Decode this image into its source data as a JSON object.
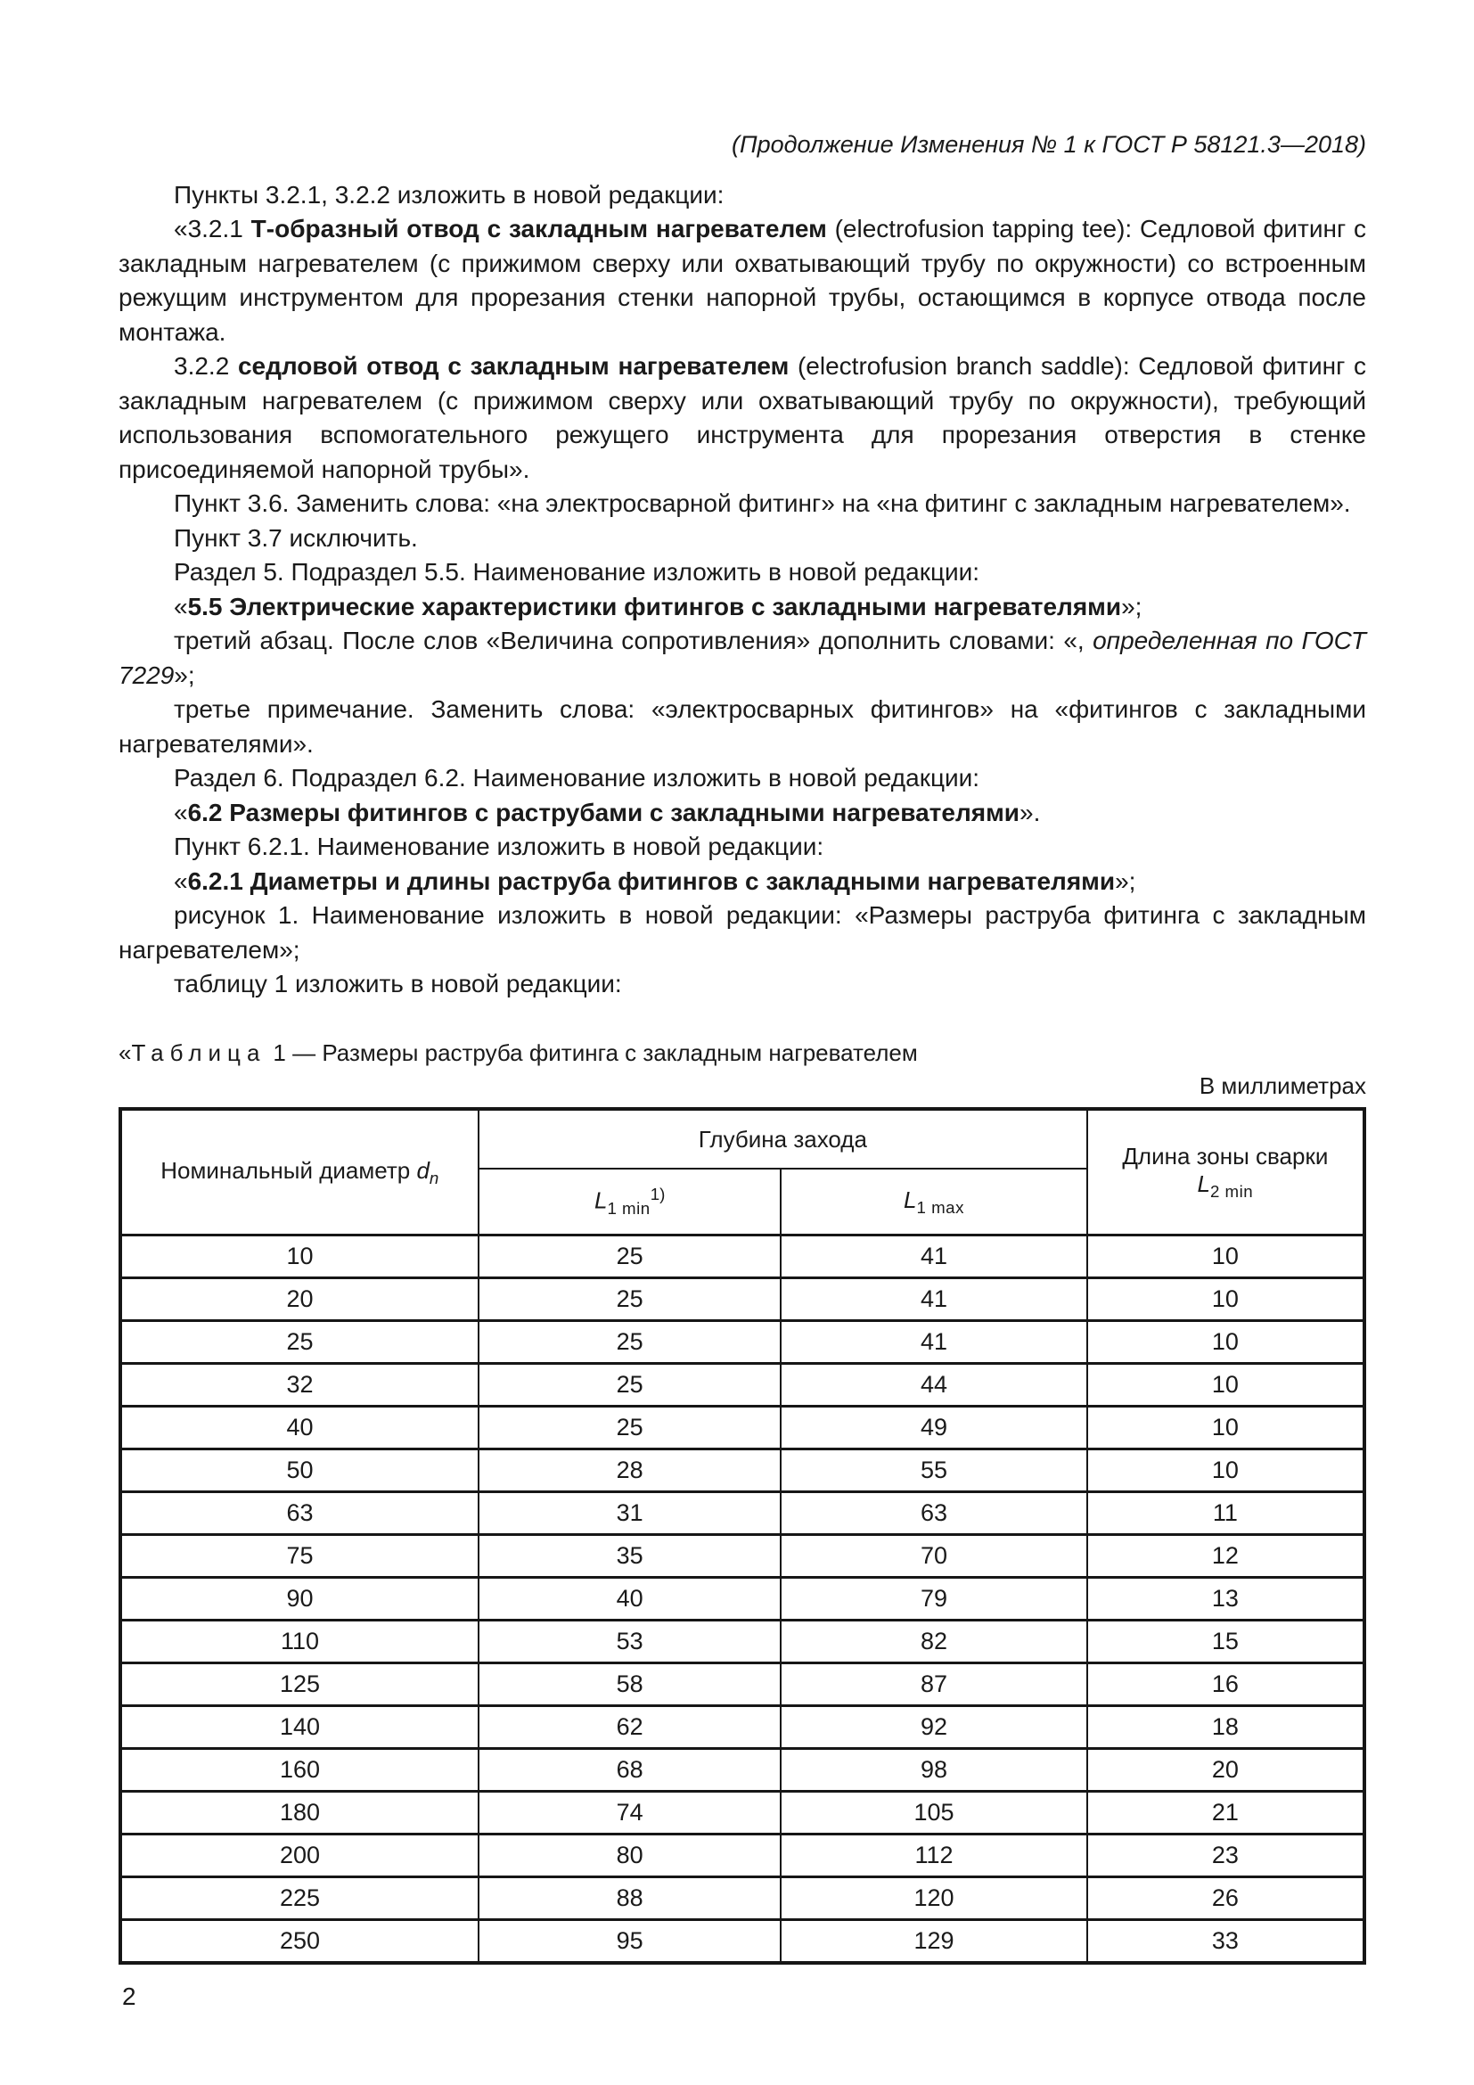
{
  "page": {
    "header_note": "(Продолжение Изменения № 1 к ГОСТ Р 58121.3—2018)",
    "page_number": "2"
  },
  "paragraphs": [
    {
      "runs": [
        {
          "t": "Пункты 3.2.1, 3.2.2 изложить в новой редакции:"
        }
      ]
    },
    {
      "runs": [
        {
          "t": "«3.2.1 "
        },
        {
          "t": "Т-образный отвод с закладным нагревателем",
          "b": true
        },
        {
          "t": " (electrofusion tapping tee): Седловой фитинг с закладным нагревателем (с прижимом сверху или охватывающий трубу по окружности) со встроенным режущим инструментом для прорезания стенки напорной трубы, остающимся в корпусе отвода после монтажа."
        }
      ]
    },
    {
      "runs": [
        {
          "t": "3.2.2 "
        },
        {
          "t": "седловой отвод с закладным нагревателем",
          "b": true
        },
        {
          "t": " (electrofusion branch saddle): Седловой фитинг с закладным нагревателем (с прижимом сверху или охватывающий трубу по окружности), требующий использования вспомогательного режущего инструмента для прорезания отверстия в стенке присоединяемой напорной трубы»."
        }
      ]
    },
    {
      "runs": [
        {
          "t": "Пункт 3.6. Заменить слова: «на электросварной фитинг» на «на фитинг с закладным нагревателем»."
        }
      ]
    },
    {
      "runs": [
        {
          "t": "Пункт 3.7 исключить."
        }
      ]
    },
    {
      "runs": [
        {
          "t": "Раздел 5. Подраздел 5.5. Наименование изложить в новой редакции:"
        }
      ]
    },
    {
      "runs": [
        {
          "t": "«"
        },
        {
          "t": "5.5 Электрические характеристики фитингов с закладными нагревателями",
          "b": true
        },
        {
          "t": "»;"
        }
      ]
    },
    {
      "runs": [
        {
          "t": "третий абзац. После слов «Величина сопротивления» дополнить словами: «, "
        },
        {
          "t": "определенная по ГОСТ 7229",
          "i": true
        },
        {
          "t": "»;"
        }
      ]
    },
    {
      "runs": [
        {
          "t": "третье примечание. Заменить слова: «электросварных фитингов» на «фитингов с закладными нагревателями»."
        }
      ]
    },
    {
      "runs": [
        {
          "t": "Раздел 6. Подраздел 6.2. Наименование изложить в новой редакции:"
        }
      ]
    },
    {
      "runs": [
        {
          "t": "«"
        },
        {
          "t": "6.2 Размеры фитингов с раструбами с закладными нагревателями",
          "b": true
        },
        {
          "t": "»."
        }
      ]
    },
    {
      "runs": [
        {
          "t": "Пункт 6.2.1. Наименование изложить в новой редакции:"
        }
      ]
    },
    {
      "runs": [
        {
          "t": "«"
        },
        {
          "t": "6.2.1 Диаметры и длины раструба фитингов с закладными нагревателями",
          "b": true
        },
        {
          "t": "»;"
        }
      ]
    },
    {
      "runs": [
        {
          "t": "рисунок 1. Наименование изложить в новой редакции: «Размеры раструба фитинга с закладным нагревателем»;"
        }
      ]
    },
    {
      "runs": [
        {
          "t": "таблицу 1 изложить в новой редакции:"
        }
      ]
    }
  ],
  "table": {
    "caption_open": "«",
    "caption_word": "Таблица",
    "caption_rest": "1 — Размеры раструба фитинга с закладным нагревателем",
    "units_note": "В миллиметрах",
    "headers": {
      "nominal_diameter": "Номинальный диаметр",
      "nominal_diameter_sym": "d",
      "nominal_diameter_sub": "n",
      "depth_group": "Глубина захода",
      "l_sym": "L",
      "l1min_sub": "1 min",
      "l1min_sup": "1)",
      "l1max_sub": "1 max",
      "weld_zone": "Длина зоны сварки",
      "l2min_sub": "2 min"
    },
    "rows": [
      [
        "10",
        "25",
        "41",
        "10"
      ],
      [
        "20",
        "25",
        "41",
        "10"
      ],
      [
        "25",
        "25",
        "41",
        "10"
      ],
      [
        "32",
        "25",
        "44",
        "10"
      ],
      [
        "40",
        "25",
        "49",
        "10"
      ],
      [
        "50",
        "28",
        "55",
        "10"
      ],
      [
        "63",
        "31",
        "63",
        "11"
      ],
      [
        "75",
        "35",
        "70",
        "12"
      ],
      [
        "90",
        "40",
        "79",
        "13"
      ],
      [
        "110",
        "53",
        "82",
        "15"
      ],
      [
        "125",
        "58",
        "87",
        "16"
      ],
      [
        "140",
        "62",
        "92",
        "18"
      ],
      [
        "160",
        "68",
        "98",
        "20"
      ],
      [
        "180",
        "74",
        "105",
        "21"
      ],
      [
        "200",
        "80",
        "112",
        "23"
      ],
      [
        "225",
        "88",
        "120",
        "26"
      ],
      [
        "250",
        "95",
        "129",
        "33"
      ]
    ]
  }
}
